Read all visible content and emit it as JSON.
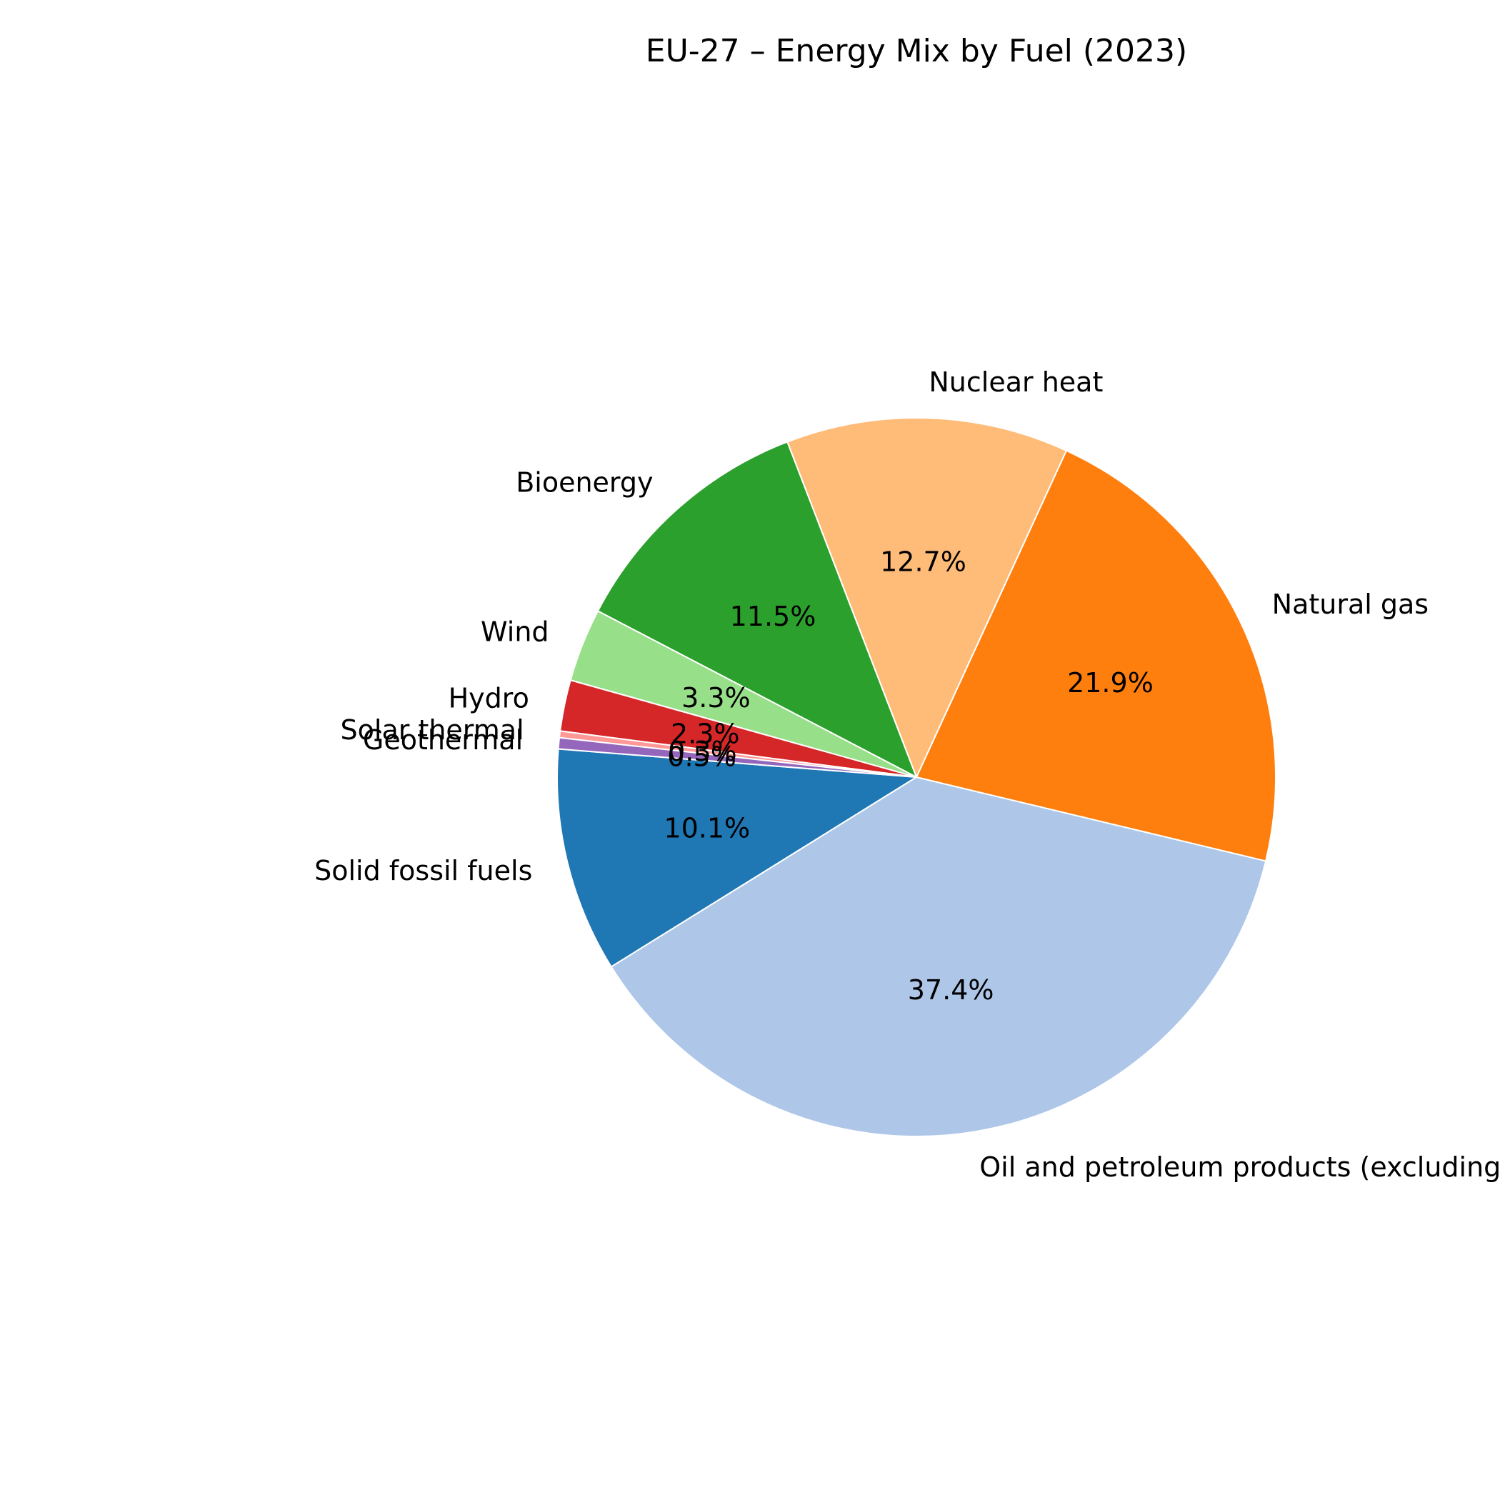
{
  "chart_data": {
    "type": "pie",
    "title": "EU-27 – Energy Mix by Fuel (2023)",
    "start_angle_deg": 175.5,
    "direction": "counterclockwise",
    "slices": [
      {
        "label": "Solid fossil fuels",
        "value": 10.1,
        "pct_label": "10.1%",
        "color": "#1f77b4"
      },
      {
        "label": "Oil and petroleum products (excluding biofuel portion)",
        "value": 37.4,
        "pct_label": "37.4%",
        "color": "#aec7e8"
      },
      {
        "label": "Natural gas",
        "value": 21.9,
        "pct_label": "21.9%",
        "color": "#ff7f0e"
      },
      {
        "label": "Nuclear heat",
        "value": 12.7,
        "pct_label": "12.7%",
        "color": "#ffbb78"
      },
      {
        "label": "Bioenergy",
        "value": 11.5,
        "pct_label": "11.5%",
        "color": "#2ca02c"
      },
      {
        "label": "Wind",
        "value": 3.3,
        "pct_label": "3.3%",
        "color": "#98df8a"
      },
      {
        "label": "Hydro",
        "value": 2.3,
        "pct_label": "2.3%",
        "color": "#d62728"
      },
      {
        "label": "Solar thermal",
        "value": 0.3,
        "pct_label": "0.3%",
        "color": "#ff9896"
      },
      {
        "label": "Geothermal",
        "value": 0.5,
        "pct_label": "0.5%",
        "color": "#9467bd"
      }
    ]
  }
}
